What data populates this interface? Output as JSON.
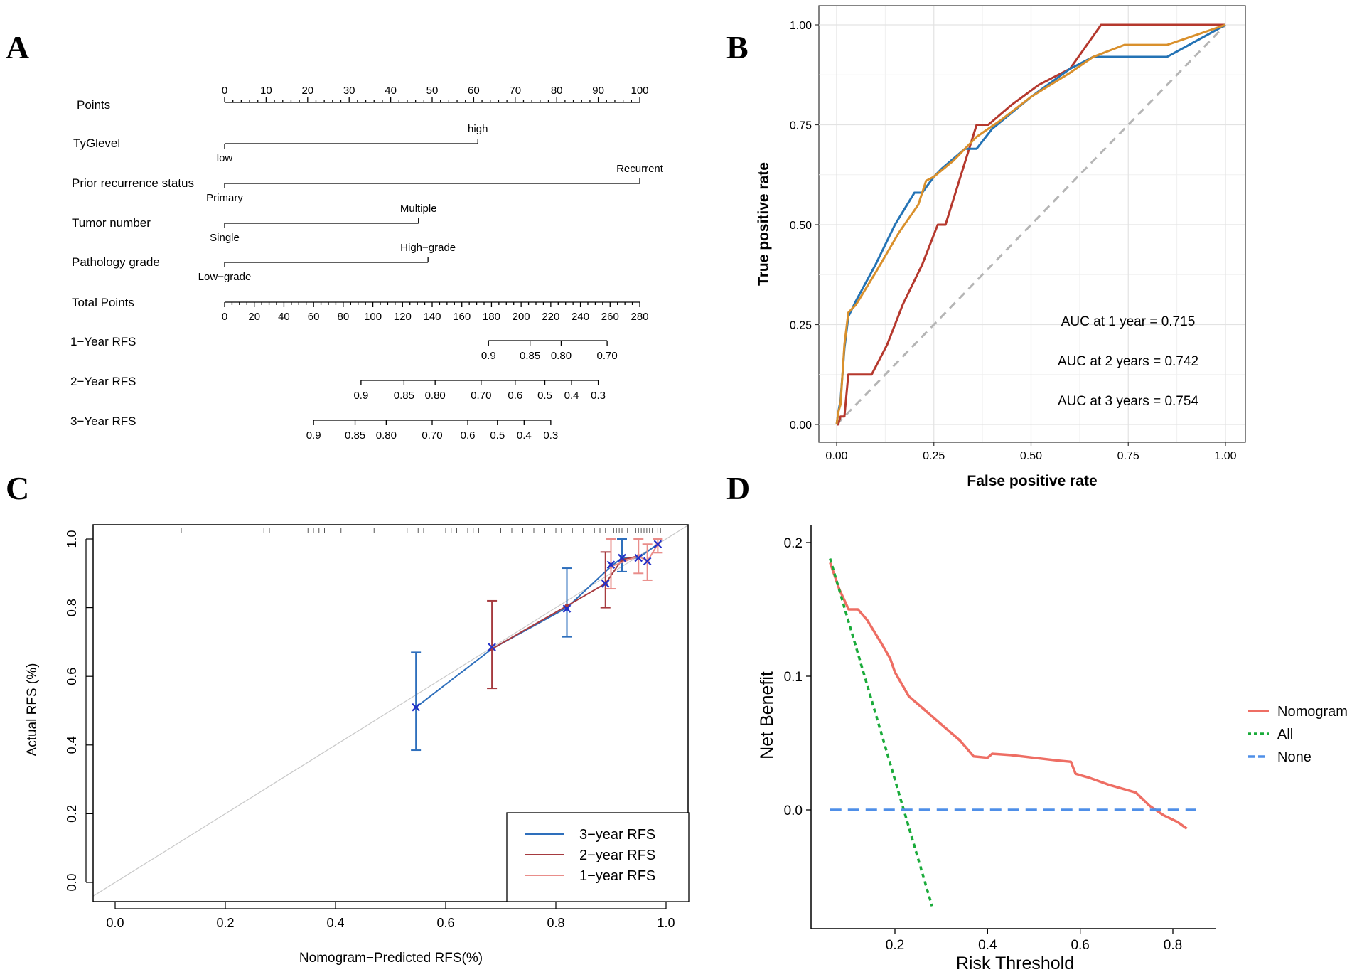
{
  "panels": {
    "A": {
      "label": "A",
      "chart_data": {
        "type": "nomogram",
        "points": {
          "label": "Points",
          "min": 0,
          "max": 100,
          "ticks": [
            0,
            10,
            20,
            30,
            40,
            50,
            60,
            70,
            80,
            90,
            100
          ]
        },
        "predictors": [
          {
            "name": "TyGlevel",
            "levels": [
              {
                "label": "low",
                "points": 0,
                "side": "below"
              },
              {
                "label": "high",
                "points": 61,
                "side": "above"
              }
            ]
          },
          {
            "name": "Prior recurrence status",
            "levels": [
              {
                "label": "Primary",
                "points": 0,
                "side": "below"
              },
              {
                "label": "Recurrent",
                "points": 100,
                "side": "above"
              }
            ]
          },
          {
            "name": "Tumor number",
            "levels": [
              {
                "label": "Single",
                "points": 0,
                "side": "below"
              },
              {
                "label": "Multiple",
                "points": 46.7,
                "side": "above"
              }
            ]
          },
          {
            "name": "Pathology grade",
            "levels": [
              {
                "label": "Low−grade",
                "points": 0,
                "side": "below"
              },
              {
                "label": "High−grade",
                "points": 49,
                "side": "above"
              }
            ]
          }
        ],
        "total_points": {
          "label": "Total Points",
          "min": 0,
          "max": 280,
          "ticks": [
            0,
            20,
            40,
            60,
            80,
            100,
            120,
            140,
            160,
            180,
            200,
            220,
            240,
            260,
            280
          ]
        },
        "outcomes": [
          {
            "name": "1−Year RFS",
            "ticks": [
              {
                "label": "0.9",
                "total": 178
              },
              {
                "label": "0.85",
                "total": 206
              },
              {
                "label": "0.80",
                "total": 227
              },
              {
                "label": "0.70",
                "total": 258
              }
            ]
          },
          {
            "name": "2−Year RFS",
            "ticks": [
              {
                "label": "0.9",
                "total": 92
              },
              {
                "label": "0.85",
                "total": 121
              },
              {
                "label": "0.80",
                "total": 142
              },
              {
                "label": "0.70",
                "total": 173
              },
              {
                "label": "0.6",
                "total": 196
              },
              {
                "label": "0.5",
                "total": 216
              },
              {
                "label": "0.4",
                "total": 234
              },
              {
                "label": "0.3",
                "total": 252
              }
            ]
          },
          {
            "name": "3−Year RFS",
            "ticks": [
              {
                "label": "0.9",
                "total": 60
              },
              {
                "label": "0.85",
                "total": 88
              },
              {
                "label": "0.80",
                "total": 109
              },
              {
                "label": "0.70",
                "total": 140
              },
              {
                "label": "0.6",
                "total": 164
              },
              {
                "label": "0.5",
                "total": 184
              },
              {
                "label": "0.4",
                "total": 202
              },
              {
                "label": "0.3",
                "total": 220
              }
            ]
          }
        ]
      }
    },
    "B": {
      "label": "B",
      "chart_data": {
        "type": "line",
        "title": "",
        "xlabel": "False positive rate",
        "ylabel": "True positive rate",
        "xlim": [
          0,
          1
        ],
        "ylim": [
          0,
          1
        ],
        "xticks": [
          "0.00",
          "0.25",
          "0.50",
          "0.75",
          "1.00"
        ],
        "yticks": [
          "0.00",
          "0.25",
          "0.50",
          "0.75",
          "1.00"
        ],
        "grid": true,
        "series": [
          {
            "name": "1 year",
            "color": "#b5382d",
            "x": [
              0,
              0.004,
              0.01,
              0.02,
              0.03,
              0.04,
              0.09,
              0.13,
              0.17,
              0.22,
              0.26,
              0.28,
              0.32,
              0.36,
              0.39,
              0.45,
              0.52,
              0.6,
              0.68,
              0.74,
              0.8,
              1
            ],
            "y": [
              0,
              0,
              0.02,
              0.02,
              0.125,
              0.125,
              0.125,
              0.2,
              0.3,
              0.4,
              0.5,
              0.5,
              0.625,
              0.75,
              0.75,
              0.8,
              0.85,
              0.89,
              1,
              1,
              1,
              1
            ]
          },
          {
            "name": "2 years",
            "color": "#2473b5",
            "x": [
              0,
              0.004,
              0.01,
              0.02,
              0.03,
              0.05,
              0.1,
              0.15,
              0.2,
              0.22,
              0.25,
              0.27,
              0.33,
              0.36,
              0.4,
              0.5,
              0.6,
              0.66,
              0.74,
              0.85,
              1
            ],
            "y": [
              0,
              0.03,
              0.06,
              0.19,
              0.27,
              0.31,
              0.4,
              0.5,
              0.58,
              0.58,
              0.62,
              0.64,
              0.69,
              0.69,
              0.74,
              0.82,
              0.89,
              0.92,
              0.92,
              0.92,
              1
            ]
          },
          {
            "name": "3 years",
            "color": "#d9902c",
            "x": [
              0,
              0.004,
              0.01,
              0.02,
              0.03,
              0.05,
              0.1,
              0.16,
              0.21,
              0.23,
              0.25,
              0.3,
              0.36,
              0.42,
              0.5,
              0.6,
              0.66,
              0.74,
              0.85,
              1
            ],
            "y": [
              0,
              0.03,
              0.05,
              0.2,
              0.28,
              0.3,
              0.38,
              0.48,
              0.55,
              0.61,
              0.62,
              0.66,
              0.72,
              0.76,
              0.82,
              0.88,
              0.92,
              0.95,
              0.95,
              1
            ]
          }
        ],
        "reference": {
          "style": "dashed",
          "color": "#b5b5b5",
          "x": [
            0,
            1
          ],
          "y": [
            0,
            1
          ]
        },
        "annotations": [
          {
            "text": "AUC at 1 year = 0.715",
            "color": "#b5382d"
          },
          {
            "text": "AUC at 2 years = 0.742",
            "color": "#2473b5"
          },
          {
            "text": "AUC at 3 years = 0.754",
            "color": "#d9902c"
          }
        ]
      }
    },
    "C": {
      "label": "C",
      "chart_data": {
        "type": "line",
        "title": "",
        "xlabel": "Nomogram−Predicted RFS(%)",
        "ylabel": "Actual RFS (%)",
        "xlim": [
          -0.04,
          1.04
        ],
        "ylim": [
          -0.04,
          1.04
        ],
        "xticks": [
          "0.0",
          "0.2",
          "0.4",
          "0.6",
          "0.8",
          "1.0"
        ],
        "yticks": [
          "0.0",
          "0.2",
          "0.4",
          "0.6",
          "0.8",
          "1.0"
        ],
        "legend": {
          "position": "bottom-right",
          "entries": [
            {
              "label": "3−year RFS",
              "color": "#2e6fbc"
            },
            {
              "label": "2−year RFS",
              "color": "#a63a3f"
            },
            {
              "label": "1−year RFS",
              "color": "#e98d8a"
            }
          ]
        },
        "series": [
          {
            "name": "3−year RFS",
            "color": "#2e6fbc",
            "x": [
              0.546,
              0.684,
              0.82,
              0.9,
              0.92,
              0.95,
              0.985
            ],
            "y": [
              0.51,
              0.68,
              0.8,
              0.92,
              0.945,
              0.945,
              0.985
            ],
            "lower": [
              0.385,
              null,
              0.715,
              null,
              0.905,
              null,
              null
            ],
            "upper": [
              0.67,
              null,
              0.915,
              null,
              1.0,
              null,
              null
            ]
          },
          {
            "name": "2−year RFS",
            "color": "#a63a3f",
            "x": [
              0.684,
              0.82,
              0.89,
              0.92,
              0.95
            ],
            "y": [
              0.68,
              0.805,
              0.87,
              0.94,
              0.95
            ],
            "lower": [
              0.565,
              null,
              0.8,
              null,
              null
            ],
            "upper": [
              0.82,
              null,
              0.962,
              null,
              null
            ]
          },
          {
            "name": "1−year RFS",
            "color": "#e98d8a",
            "x": [
              0.9,
              0.95,
              0.966,
              0.985
            ],
            "y": [
              0.92,
              0.95,
              0.935,
              0.985
            ],
            "lower": [
              0.855,
              0.9,
              0.88,
              0.96
            ],
            "upper": [
              1.0,
              1.0,
              0.985,
              1.0
            ]
          }
        ],
        "points_x": [
          0.546,
          0.684,
          0.82,
          0.89,
          0.9,
          0.92,
          0.95,
          0.966,
          0.985
        ],
        "points_y": [
          0.51,
          0.685,
          0.797,
          0.87,
          0.925,
          0.945,
          0.945,
          0.935,
          0.985
        ],
        "rug": [
          0.12,
          0.27,
          0.28,
          0.35,
          0.36,
          0.37,
          0.38,
          0.41,
          0.47,
          0.53,
          0.55,
          0.56,
          0.6,
          0.61,
          0.62,
          0.64,
          0.65,
          0.66,
          0.7,
          0.72,
          0.74,
          0.76,
          0.78,
          0.8,
          0.81,
          0.82,
          0.83,
          0.85,
          0.86,
          0.87,
          0.88,
          0.89,
          0.9,
          0.905,
          0.91,
          0.915,
          0.92,
          0.93,
          0.94,
          0.945,
          0.95,
          0.955,
          0.96,
          0.965,
          0.97,
          0.975,
          0.98,
          0.985,
          0.99
        ]
      }
    },
    "D": {
      "label": "D",
      "chart_data": {
        "type": "line",
        "title": "",
        "xlabel": "Risk Threshold",
        "ylabel": "Net Benefit",
        "xlim": [
          0.02,
          0.9
        ],
        "ylim": [
          -0.09,
          0.21
        ],
        "xticks": [
          "0.2",
          "0.4",
          "0.6",
          "0.8"
        ],
        "yticks": [
          "0.0",
          "0.1",
          "0.2"
        ],
        "legend": {
          "position": "right",
          "entries": [
            {
              "label": "Nomogram",
              "color": "#ee6e64",
              "style": "solid"
            },
            {
              "label": "All",
              "color": "#1aab3a",
              "style": "dotted"
            },
            {
              "label": "None",
              "color": "#4f8fe8",
              "style": "dashed"
            }
          ]
        },
        "series": [
          {
            "name": "Nomogram",
            "color": "#ee6e64",
            "style": "solid",
            "x": [
              0.06,
              0.08,
              0.1,
              0.12,
              0.14,
              0.17,
              0.19,
              0.195,
              0.2,
              0.23,
              0.26,
              0.3,
              0.34,
              0.37,
              0.4,
              0.41,
              0.45,
              0.5,
              0.55,
              0.58,
              0.59,
              0.62,
              0.66,
              0.7,
              0.72,
              0.75,
              0.78,
              0.81,
              0.83
            ],
            "y": [
              0.185,
              0.165,
              0.15,
              0.15,
              0.142,
              0.125,
              0.113,
              0.108,
              0.103,
              0.085,
              0.076,
              0.064,
              0.052,
              0.04,
              0.039,
              0.042,
              0.041,
              0.039,
              0.037,
              0.036,
              0.027,
              0.024,
              0.019,
              0.015,
              0.013,
              0.003,
              -0.004,
              -0.009,
              -0.014
            ]
          },
          {
            "name": "All",
            "color": "#1aab3a",
            "style": "dotted",
            "x": [
              0.06,
              0.28
            ],
            "y": [
              0.188,
              -0.072
            ]
          },
          {
            "name": "None",
            "color": "#4f8fe8",
            "style": "dashed",
            "x": [
              0.06,
              0.85
            ],
            "y": [
              0,
              0
            ]
          }
        ]
      }
    }
  }
}
